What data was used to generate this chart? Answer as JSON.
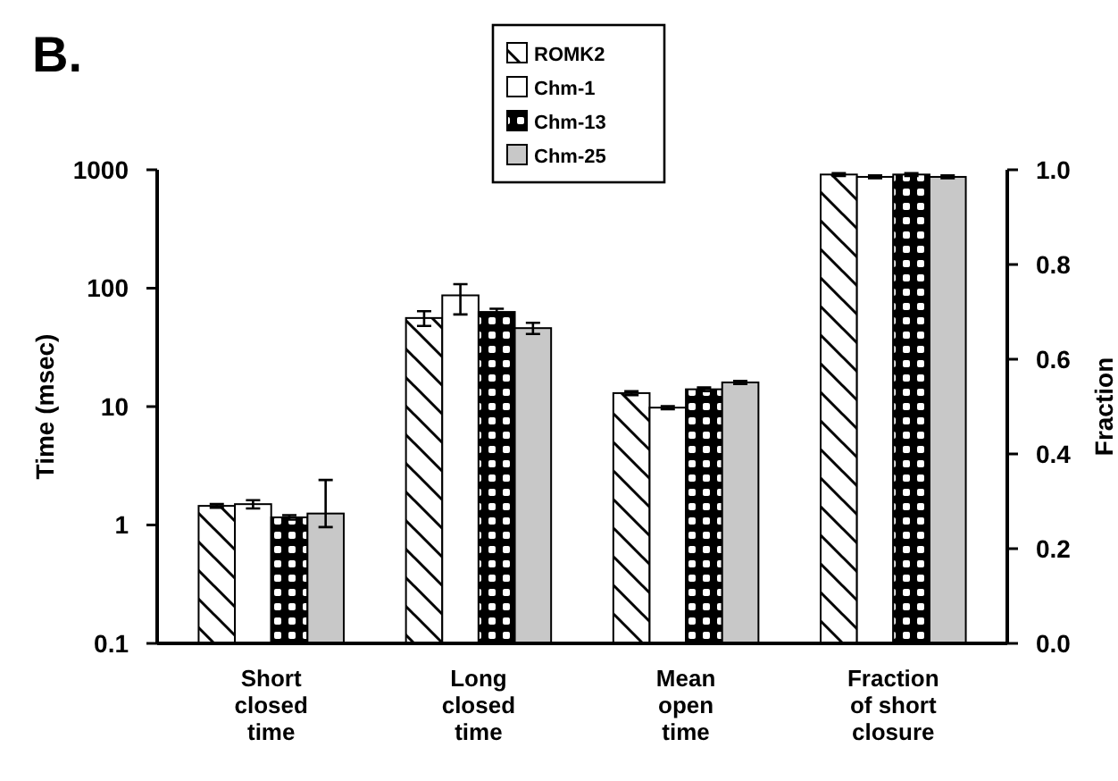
{
  "chart_data": {
    "type": "bar",
    "title": "B.",
    "ylabel": "Time (msec)",
    "y2label": "Fraction",
    "categories": [
      "Short closed time",
      "Long closed time",
      "Mean open time",
      "Fraction of short closure"
    ],
    "log": "y",
    "ylim": [
      0.1,
      1000
    ],
    "yticks": [
      0.1,
      1,
      10,
      100,
      1000
    ],
    "y2lim": [
      0,
      1
    ],
    "y2ticks": [
      {
        "value": 0,
        "label": "0.0"
      },
      {
        "value": 0.2,
        "label": "0.2"
      },
      {
        "value": 0.4,
        "label": "0.4"
      },
      {
        "value": 0.6,
        "label": "0.6"
      },
      {
        "value": 0.8,
        "label": "0.8"
      },
      {
        "value": 1,
        "label": "1.0"
      }
    ],
    "legend": "top",
    "grid": false,
    "series": [
      {
        "name": "ROMK2",
        "color": "#000000",
        "values": [
          1.45,
          56,
          13,
          null
        ],
        "errors": [
          0.05,
          [
            48,
            64
          ],
          0.5,
          null
        ]
      },
      {
        "name": "Chm-1",
        "color": "#ffffff",
        "values": [
          1.5,
          87,
          9.8,
          null
        ],
        "errors": [
          0.12,
          [
            60,
            108
          ],
          0.3,
          null
        ]
      },
      {
        "name": "Chm-13",
        "color": "#000000",
        "values": [
          1.16,
          63,
          14,
          null
        ],
        "errors": [
          0.05,
          4,
          0.5,
          null
        ]
      },
      {
        "name": "Chm-25",
        "color": "#c8c8c8",
        "values": [
          1.25,
          46,
          16,
          null
        ],
        "errors": [
          [
            0.96,
            2.4
          ],
          [
            41,
            51
          ],
          0.5,
          null
        ]
      },
      {
        "color": "#000000",
        "axis": "y2",
        "values": [
          null,
          null,
          null,
          0.99
        ],
        "errors": [
          null,
          null,
          null,
          0.003
        ]
      },
      {
        "color": "#ffffff",
        "axis": "y2",
        "values": [
          null,
          null,
          null,
          0.985
        ],
        "errors": [
          null,
          null,
          null,
          0.003
        ]
      },
      {
        "color": "#000000",
        "axis": "y2",
        "values": [
          null,
          null,
          null,
          0.99
        ],
        "errors": [
          null,
          null,
          null,
          0.003
        ]
      },
      {
        "color": "#c8c8c8",
        "axis": "y2",
        "values": [
          null,
          null,
          null,
          0.985
        ],
        "errors": [
          null,
          null,
          null,
          0.003
        ]
      }
    ]
  }
}
